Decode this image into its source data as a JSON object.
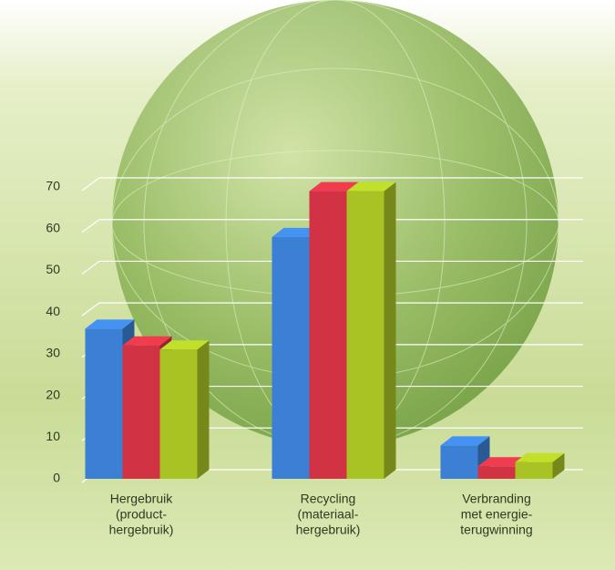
{
  "chart_data": {
    "type": "bar3d",
    "categories": [
      [
        "Hergebruik",
        "(product-",
        "hergebruik)"
      ],
      [
        "Recycling",
        "(materiaal-",
        "hergebruik)"
      ],
      [
        "Verbranding",
        "met energie-",
        "terugwinning"
      ]
    ],
    "series": [
      {
        "color": "#3b80d4",
        "values": [
          36,
          58,
          8
        ]
      },
      {
        "color": "#d23344",
        "values": [
          32,
          69,
          3
        ]
      },
      {
        "color": "#a9c224",
        "values": [
          31,
          69,
          4
        ]
      }
    ],
    "ylim": [
      0,
      70
    ],
    "yticks": [
      0,
      10,
      20,
      30,
      40,
      50,
      60,
      70
    ],
    "grid": true
  }
}
